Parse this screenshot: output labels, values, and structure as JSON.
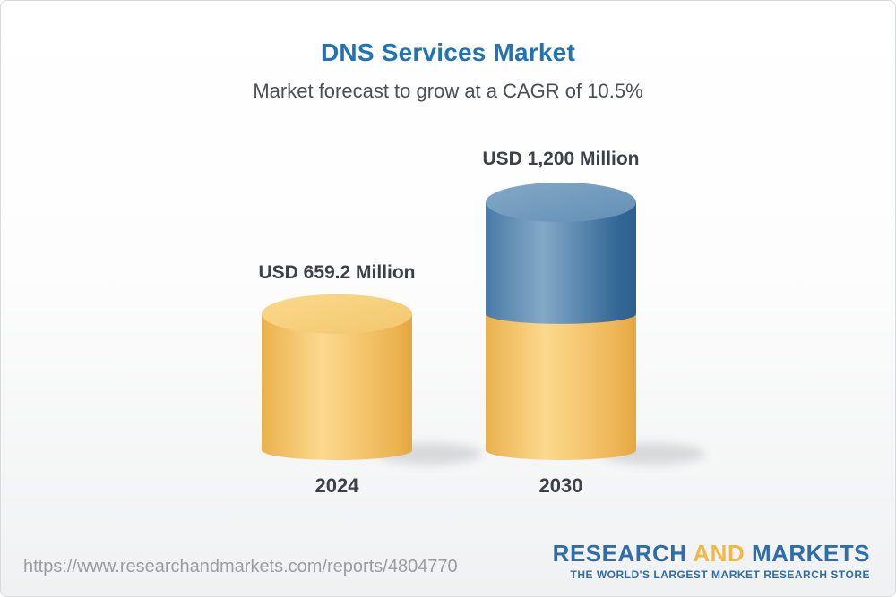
{
  "chart_data": {
    "type": "bar",
    "variant": "3d-cylinder-stacked",
    "title": "DNS Services Market",
    "subtitle": "Market forecast to grow at a CAGR of 10.5%",
    "cagr_percent": 10.5,
    "unit": "USD Million",
    "categories": [
      "2024",
      "2030"
    ],
    "values": [
      659.2,
      1200
    ],
    "value_labels": [
      "USD 659.2 Million",
      "USD 1,200 Million"
    ],
    "ylim": [
      0,
      1200
    ],
    "axes_visible": false,
    "gridlines": false,
    "legend_visible": false,
    "bar_colors": {
      "base_segment_yellow": "#F2C367",
      "growth_segment_blue": "#4176A6"
    },
    "note": "2030 bar is stacked: the 2024 base value is shown in yellow and the incremental growth to 2030 in blue"
  },
  "footer": {
    "source_url": "https://www.researchandmarkets.com/reports/4804770",
    "logo": {
      "word_research": "RESEARCH",
      "word_and": "AND",
      "word_markets": "MARKETS",
      "tagline": "THE WORLD'S LARGEST MARKET RESEARCH STORE"
    }
  },
  "colors": {
    "title_blue": "#2173B5",
    "subtitle_gray": "#4A4F55",
    "label_charcoal": "#3C4148",
    "url_gray": "#9A9CA0",
    "logo_blue": "#2E6DA8",
    "logo_yellow": "#F0B844",
    "background_bottom": "#F0F1F2"
  }
}
